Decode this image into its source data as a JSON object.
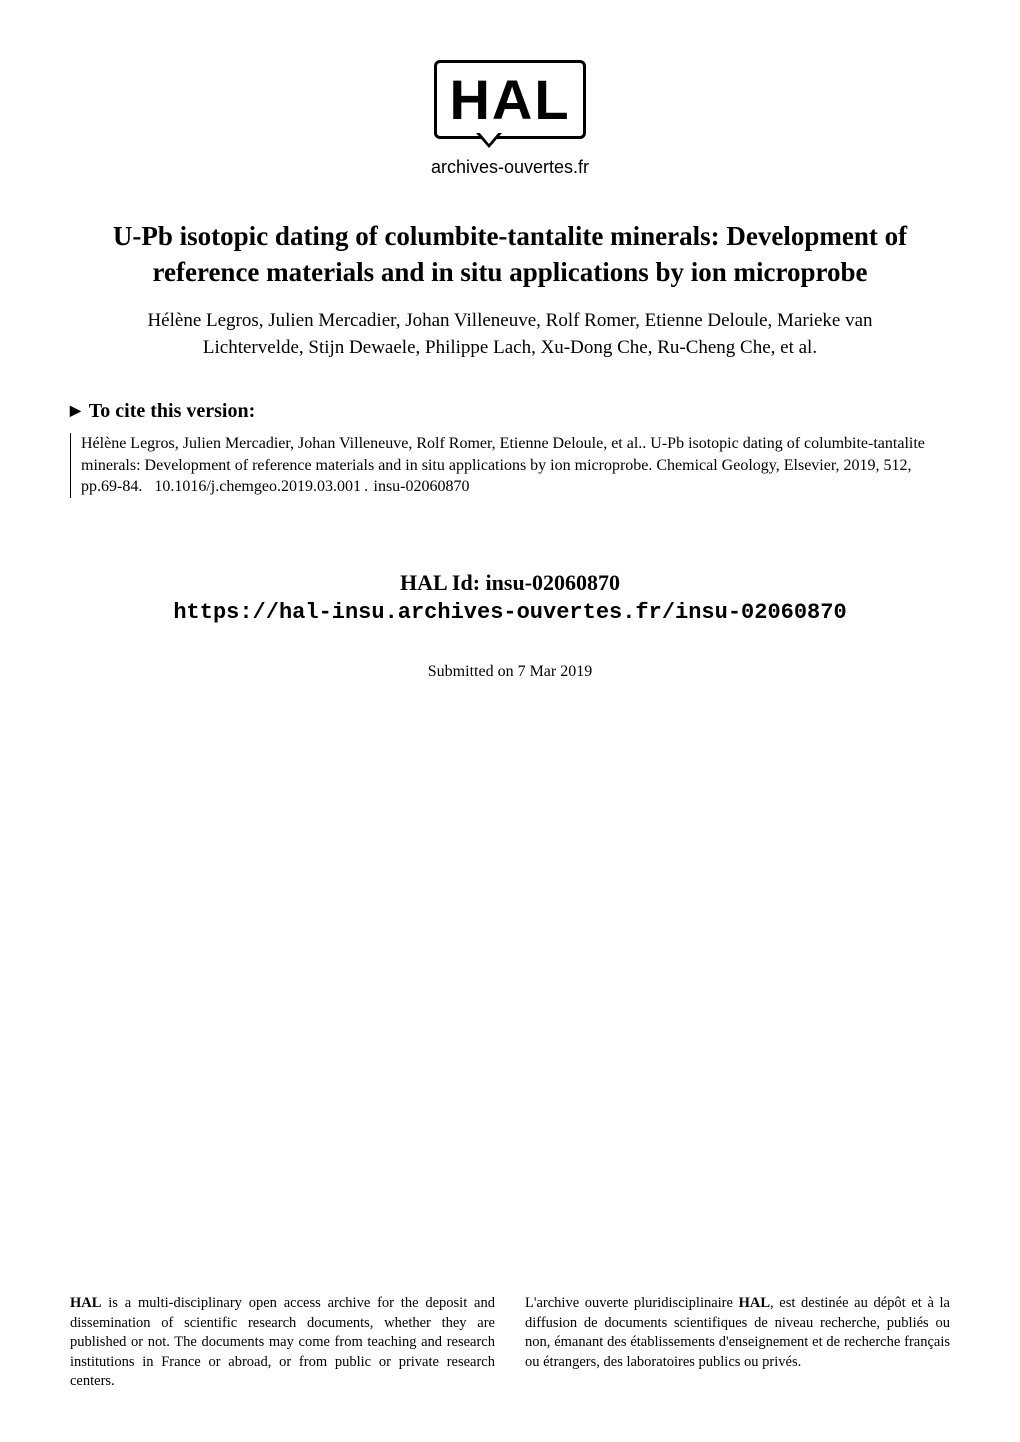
{
  "logo": {
    "text": "HAL",
    "subtitle": "archives-ouvertes.fr",
    "border_color": "#000000",
    "text_color": "#000000"
  },
  "paper": {
    "title": "U-Pb isotopic dating of columbite-tantalite minerals: Development of reference materials and in situ applications by ion microprobe",
    "authors": "Hélène Legros, Julien Mercadier, Johan Villeneuve, Rolf Romer, Etienne Deloule, Marieke van Lichtervelde, Stijn Dewaele, Philippe Lach, Xu-Dong Che, Ru-Cheng Che, et al."
  },
  "cite": {
    "heading": "To cite this version:",
    "body": "Hélène Legros, Julien Mercadier, Johan Villeneuve, Rolf Romer, Etienne Deloule, et al.. U-Pb isotopic dating of columbite-tantalite minerals: Development of reference materials and in situ applications by ion microprobe. Chemical Geology, Elsevier, 2019, 512, pp.69-84.  10.1016/j.chemgeo.2019.03.001 .  insu-02060870 "
  },
  "hal_id": {
    "label": "HAL Id: insu-02060870",
    "url": "https://hal-insu.archives-ouvertes.fr/insu-02060870"
  },
  "submitted": "Submitted on 7 Mar 2019",
  "license": {
    "left_bold": "HAL",
    "left_text": " is a multi-disciplinary open access archive for the deposit and dissemination of scientific research documents, whether they are published or not. The documents may come from teaching and research institutions in France or abroad, or from public or private research centers.",
    "right_prefix": "L'archive ouverte pluridisciplinaire ",
    "right_bold": "HAL",
    "right_text": ", est destinée au dépôt et à la diffusion de documents scientifiques de niveau recherche, publiés ou non, émanant des établissements d'enseignement et de recherche français ou étrangers, des laboratoires publics ou privés."
  },
  "colors": {
    "background": "#ffffff",
    "text": "#000000"
  },
  "typography": {
    "title_fontsize": 27,
    "authors_fontsize": 19,
    "cite_heading_fontsize": 20,
    "cite_body_fontsize": 16,
    "hal_id_fontsize": 22,
    "submitted_fontsize": 16,
    "license_fontsize": 14.5,
    "font_family": "Times New Roman"
  }
}
